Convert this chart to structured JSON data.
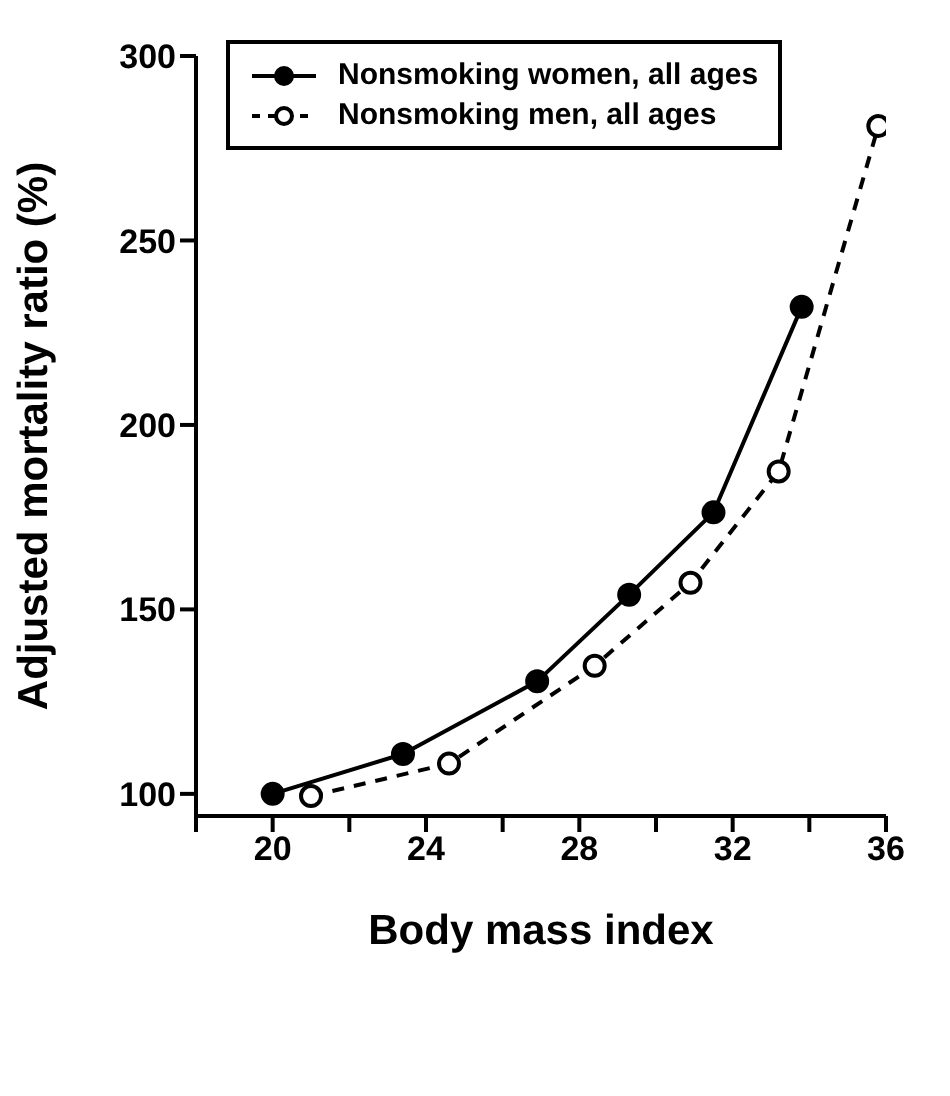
{
  "chart_data": {
    "type": "line",
    "xlabel": "Body mass index",
    "ylabel": "Adjusted mortality ratio (%)",
    "xlim": [
      18,
      36
    ],
    "xticks": [
      {
        "value": 18,
        "label": null
      },
      20,
      {
        "value": 22,
        "label": null
      },
      24,
      {
        "value": 26,
        "label": null
      },
      28,
      {
        "value": 30,
        "label": null
      },
      32,
      {
        "value": 34,
        "label": null
      },
      36
    ],
    "ylim": [
      94,
      300
    ],
    "yticks": [
      100,
      150,
      200,
      250,
      300
    ],
    "grid": false,
    "legend": "top left",
    "marker": "circle",
    "series": [
      {
        "name": "Nonsmoking women, all ages",
        "color": "#000000",
        "line_style": "solid",
        "x": [
          20,
          23.4,
          26.9,
          29.3,
          31.5,
          33.8
        ],
        "values": [
          100,
          110.8,
          130.5,
          154,
          176.3,
          232
        ]
      },
      {
        "name": "Nonsmoking men, all ages",
        "color": "#000000",
        "line_style": "dashed",
        "x": [
          21,
          24.6,
          28.4,
          30.9,
          33.2,
          35.8
        ],
        "values": [
          99.4,
          108.2,
          134.7,
          157.2,
          187.4,
          281
        ]
      }
    ]
  }
}
